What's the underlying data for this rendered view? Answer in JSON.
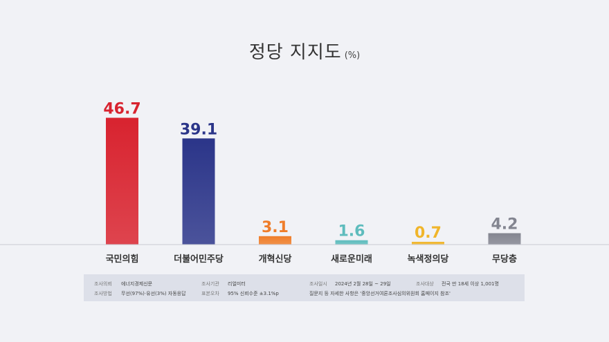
{
  "title": "정당 지지도",
  "title_unit": "(%)",
  "chart_data": {
    "type": "bar",
    "categories": [
      "국민의힘",
      "더불어민주당",
      "개혁신당",
      "새로운미래",
      "녹색정의당",
      "무당층"
    ],
    "values": [
      46.7,
      39.1,
      3.1,
      1.6,
      0.7,
      4.2
    ],
    "value_labels": [
      "46.7",
      "39.1",
      "3.1",
      "1.6",
      "0.7",
      "4.2"
    ],
    "colors": [
      "#d8232f",
      "#2b3589",
      "#ef7d2a",
      "#5ebcbd",
      "#f0b52a",
      "#838590"
    ],
    "ylim": [
      0,
      50
    ],
    "grid": false,
    "legend": "none"
  },
  "survey": {
    "client_label": "조사의뢰",
    "client": "에너지경제신문",
    "agency_label": "조사기관",
    "agency": "리얼미터",
    "date_label": "조사일시",
    "date": "2024년 2월 28일 ~ 29일",
    "target_label": "조사대상",
    "target": "전국 만 18세 이상 1,001명",
    "method_label": "조사방법",
    "method": "무선(97%)·유선(3%) 자동응답",
    "error_label": "표본오차",
    "error": "95% 신뢰수준 ±3.1%p",
    "note": "질문지 등 자세한 사항은 '중앙선거여론조사심의위원회 홈페이지 참조'"
  }
}
